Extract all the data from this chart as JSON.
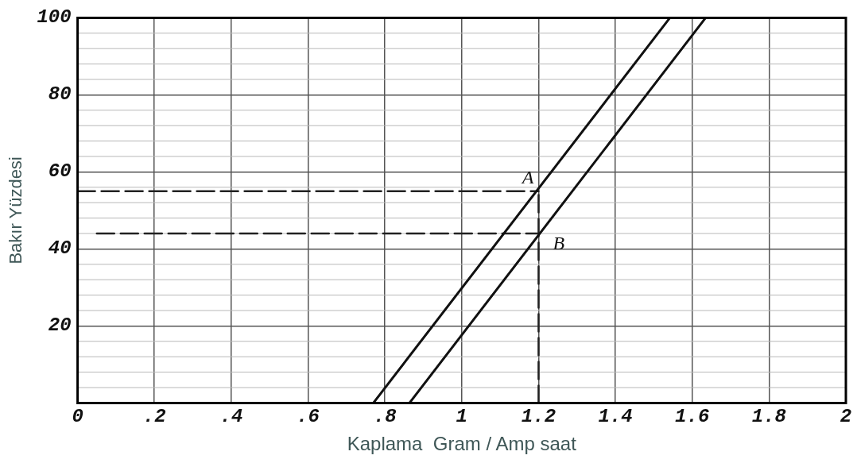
{
  "chart_data": {
    "type": "line",
    "xlabel": "Kaplama  Gram / Amp saat",
    "ylabel": "Bakır Yüzdesi",
    "xlim": [
      0,
      2
    ],
    "ylim": [
      0,
      100
    ],
    "xticks": [
      0,
      {
        "value": 0.2,
        "label": ".2"
      },
      {
        "value": 0.4,
        "label": ".4"
      },
      {
        "value": 0.6,
        "label": ".6"
      },
      {
        "value": 0.8,
        "label": ".8"
      },
      1,
      1.2,
      1.4,
      1.6,
      1.8,
      2
    ],
    "yticks": [
      {
        "value": 0,
        "label": null
      },
      20,
      40,
      60,
      80,
      100
    ],
    "grid": true,
    "marker": "none",
    "series": [
      {
        "color": "#111111",
        "x": [
          0.77,
          1.542
        ],
        "values": [
          0,
          100
        ]
      },
      {
        "color": "#111111",
        "x": [
          0.864,
          1.635
        ],
        "values": [
          0,
          100
        ]
      },
      {
        "color": "#222222",
        "line_style": "dashed",
        "x": [
          0,
          1.2
        ],
        "values": [
          55,
          55
        ]
      },
      {
        "color": "#222222",
        "line_style": "dashed",
        "x": [
          0.05,
          1.2
        ],
        "values": [
          44,
          44
        ]
      },
      {
        "color": "#222222",
        "line_style": "dashed",
        "x": [
          1.2,
          1.2
        ],
        "values": [
          0,
          55
        ]
      }
    ],
    "annotations": [
      {
        "text": "A",
        "x": 1.2,
        "y": 55
      },
      {
        "text": "B",
        "x": 1.2,
        "y": 44
      }
    ]
  }
}
